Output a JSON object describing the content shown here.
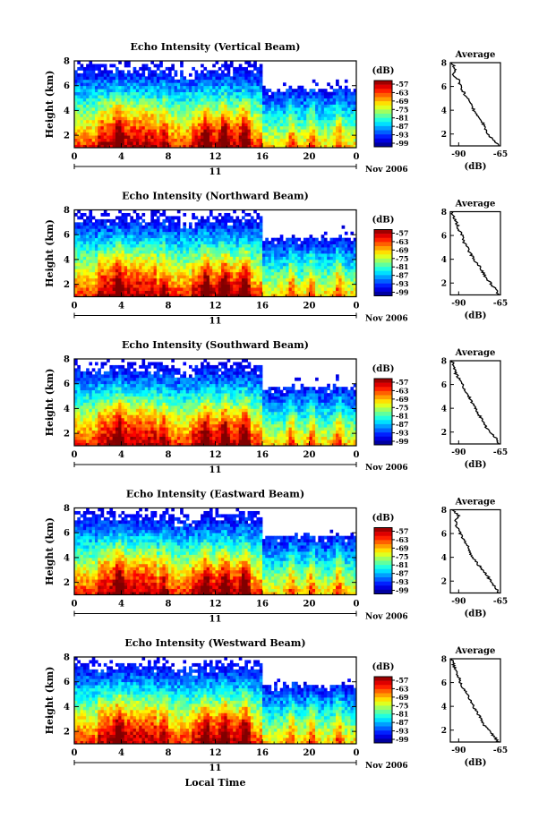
{
  "chart_data": [
    {
      "type": "heatmap",
      "title": "Echo Intensity (Vertical Beam)",
      "ylabel": "Height (km)",
      "x_ticks": [
        "0",
        "4",
        "8",
        "12",
        "16",
        "20",
        "0"
      ],
      "xlim": [
        0,
        24
      ],
      "y_ticks": [
        "2",
        "4",
        "6",
        "8"
      ],
      "ylim": [
        1,
        8
      ],
      "day_label": "11",
      "month_label": "Nov 2006",
      "colorbar": {
        "unit": "(dB)",
        "ticks": [
          "-57",
          "-63",
          "-69",
          "-75",
          "-81",
          "-87",
          "-93",
          "-99"
        ]
      },
      "average": {
        "title": "Average",
        "xlabel": "(dB)",
        "x_ticks": [
          "-90",
          "-65"
        ],
        "xlim": [
          -95,
          -65
        ],
        "y_ticks": [
          "2",
          "4",
          "6",
          "8"
        ],
        "ylim": [
          1,
          8
        ],
        "profile": {
          "height": [
            1.0,
            1.5,
            2.0,
            2.5,
            3.0,
            3.5,
            4.0,
            4.5,
            5.0,
            5.5,
            6.0,
            6.5,
            7.0,
            7.5,
            8.0
          ],
          "db": [
            -66,
            -69,
            -73,
            -74,
            -76,
            -79,
            -81,
            -82,
            -85,
            -87,
            -89,
            -90,
            -93,
            -92,
            -94
          ]
        }
      }
    },
    {
      "type": "heatmap",
      "title": "Echo Intensity (Northward Beam)",
      "ylabel": "Height (km)",
      "x_ticks": [
        "0",
        "4",
        "8",
        "12",
        "16",
        "20",
        "0"
      ],
      "xlim": [
        0,
        24
      ],
      "y_ticks": [
        "2",
        "4",
        "6",
        "8"
      ],
      "ylim": [
        1,
        8
      ],
      "day_label": "11",
      "month_label": "Nov 2006",
      "colorbar": {
        "unit": "(dB)",
        "ticks": [
          "-57",
          "-63",
          "-69",
          "-75",
          "-81",
          "-87",
          "-93",
          "-99"
        ]
      },
      "average": {
        "title": "Average",
        "xlabel": "(dB)",
        "x_ticks": [
          "-90",
          "-65"
        ],
        "xlim": [
          -95,
          -65
        ],
        "y_ticks": [
          "2",
          "4",
          "6",
          "8"
        ],
        "ylim": [
          1,
          8
        ],
        "profile": {
          "height": [
            1.0,
            1.5,
            2.0,
            2.5,
            3.0,
            3.5,
            4.0,
            4.5,
            5.0,
            5.5,
            6.0,
            6.5,
            7.0,
            7.5,
            8.0
          ],
          "db": [
            -66,
            -68,
            -71,
            -74,
            -76,
            -78,
            -81,
            -83,
            -85,
            -87,
            -88,
            -90,
            -91,
            -93,
            -94
          ]
        }
      }
    },
    {
      "type": "heatmap",
      "title": "Echo Intensity (Southward Beam)",
      "ylabel": "Height (km)",
      "x_ticks": [
        "0",
        "4",
        "8",
        "12",
        "16",
        "20",
        "0"
      ],
      "xlim": [
        0,
        24
      ],
      "y_ticks": [
        "2",
        "4",
        "6",
        "8"
      ],
      "ylim": [
        1,
        8
      ],
      "day_label": "11",
      "month_label": "Nov 2006",
      "colorbar": {
        "unit": "(dB)",
        "ticks": [
          "-57",
          "-63",
          "-69",
          "-75",
          "-81",
          "-87",
          "-93",
          "-99"
        ]
      },
      "average": {
        "title": "Average",
        "xlabel": "(dB)",
        "x_ticks": [
          "-90",
          "-65"
        ],
        "xlim": [
          -95,
          -65
        ],
        "y_ticks": [
          "2",
          "4",
          "6",
          "8"
        ],
        "ylim": [
          1,
          8
        ],
        "profile": {
          "height": [
            1.0,
            1.5,
            2.0,
            2.5,
            3.0,
            3.5,
            4.0,
            4.5,
            5.0,
            5.5,
            6.0,
            6.5,
            7.0,
            7.5,
            8.0
          ],
          "db": [
            -66,
            -68,
            -71,
            -74,
            -76,
            -78,
            -80,
            -82,
            -84,
            -86,
            -88,
            -90,
            -92,
            -93,
            -94
          ]
        }
      }
    },
    {
      "type": "heatmap",
      "title": "Echo Intensity (Eastward Beam)",
      "ylabel": "Height (km)",
      "x_ticks": [
        "0",
        "4",
        "8",
        "12",
        "16",
        "20",
        "0"
      ],
      "xlim": [
        0,
        24
      ],
      "y_ticks": [
        "2",
        "4",
        "6",
        "8"
      ],
      "ylim": [
        1,
        8
      ],
      "day_label": "11",
      "month_label": "Nov 2006",
      "colorbar": {
        "unit": "(dB)",
        "ticks": [
          "-57",
          "-63",
          "-69",
          "-75",
          "-81",
          "-87",
          "-93",
          "-99"
        ]
      },
      "average": {
        "title": "Average",
        "xlabel": "(dB)",
        "x_ticks": [
          "-90",
          "-65"
        ],
        "xlim": [
          -95,
          -65
        ],
        "y_ticks": [
          "2",
          "4",
          "6",
          "8"
        ],
        "ylim": [
          1,
          8
        ],
        "profile": {
          "height": [
            1.0,
            1.5,
            2.0,
            2.5,
            3.0,
            3.5,
            4.0,
            4.5,
            5.0,
            5.5,
            6.0,
            6.5,
            7.0,
            7.5,
            8.0
          ],
          "db": [
            -66,
            -68,
            -71,
            -73,
            -76,
            -79,
            -82,
            -83,
            -85,
            -87,
            -89,
            -91,
            -92,
            -90,
            -94
          ]
        }
      }
    },
    {
      "type": "heatmap",
      "title": "Echo Intensity (Westward Beam)",
      "ylabel": "Height (km)",
      "x_ticks": [
        "0",
        "4",
        "8",
        "12",
        "16",
        "20",
        "0"
      ],
      "xlim": [
        0,
        24
      ],
      "y_ticks": [
        "2",
        "4",
        "6",
        "8"
      ],
      "ylim": [
        1,
        8
      ],
      "day_label": "11",
      "month_label": "Nov 2006",
      "xlabel": "Local Time",
      "colorbar": {
        "unit": "(dB)",
        "ticks": [
          "-57",
          "-63",
          "-69",
          "-75",
          "-81",
          "-87",
          "-93",
          "-99"
        ]
      },
      "average": {
        "title": "Average",
        "xlabel": "(dB)",
        "x_ticks": [
          "-90",
          "-65"
        ],
        "xlim": [
          -95,
          -65
        ],
        "y_ticks": [
          "2",
          "4",
          "6",
          "8"
        ],
        "ylim": [
          1,
          8
        ],
        "profile": {
          "height": [
            1.0,
            1.5,
            2.0,
            2.5,
            3.0,
            3.5,
            4.0,
            4.5,
            5.0,
            5.5,
            6.0,
            6.5,
            7.0,
            7.5,
            8.0
          ],
          "db": [
            -66,
            -69,
            -72,
            -75,
            -77,
            -79,
            -81,
            -83,
            -85,
            -87,
            -89,
            -90,
            -92,
            -93,
            -94
          ]
        }
      }
    }
  ]
}
